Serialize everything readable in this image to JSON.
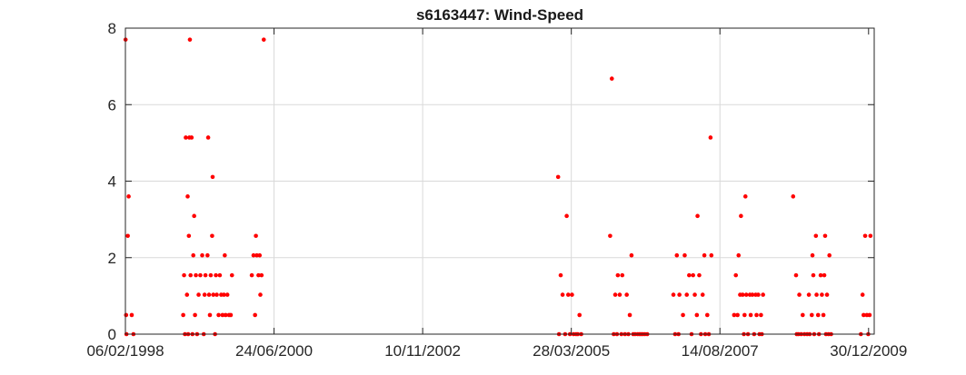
{
  "chart_data": {
    "type": "scatter",
    "title": "s6163447: Wind-Speed",
    "xlabel": "",
    "ylabel": "",
    "x_axis_type": "date",
    "xlim": [
      "1998-02-06",
      "2010-02-01"
    ],
    "ylim": [
      0,
      8
    ],
    "x_tick_values": [
      "1998-02-06",
      "2000-06-24",
      "2002-11-10",
      "2005-03-28",
      "2007-08-14",
      "2009-12-30"
    ],
    "x_tick_labels": [
      "06/02/1998",
      "24/06/2000",
      "10/11/2002",
      "28/03/2005",
      "14/08/2007",
      "30/12/2009"
    ],
    "y_ticks": [
      0,
      2,
      4,
      6,
      8
    ],
    "y_tick_labels": [
      "0",
      "2",
      "4",
      "6",
      "8"
    ],
    "grid": true,
    "marker_color": "#ff0000",
    "series": [
      {
        "points": [
          [
            "1998-02-07",
            7.7
          ],
          [
            "1998-02-10",
            0.5
          ],
          [
            "1998-02-12",
            0
          ],
          [
            "1998-02-20",
            2.57
          ],
          [
            "1998-02-25",
            3.6
          ],
          [
            "1998-03-15",
            0.5
          ],
          [
            "1998-03-25",
            0
          ],
          [
            "1999-01-10",
            0.5
          ],
          [
            "1999-01-15",
            1.54
          ],
          [
            "1999-01-20",
            0
          ],
          [
            "1999-01-25",
            5.14
          ],
          [
            "1999-02-01",
            1.03
          ],
          [
            "1999-02-05",
            3.6
          ],
          [
            "1999-02-08",
            0
          ],
          [
            "1999-02-12",
            2.57
          ],
          [
            "1999-02-15",
            5.14
          ],
          [
            "1999-02-18",
            7.7
          ],
          [
            "1999-02-22",
            1.54
          ],
          [
            "1999-02-28",
            5.14
          ],
          [
            "1999-03-05",
            0
          ],
          [
            "1999-03-10",
            2.06
          ],
          [
            "1999-03-15",
            3.09
          ],
          [
            "1999-03-20",
            0.5
          ],
          [
            "1999-03-25",
            1.54
          ],
          [
            "1999-04-01",
            0
          ],
          [
            "1999-04-10",
            1.03
          ],
          [
            "1999-04-20",
            1.54
          ],
          [
            "1999-05-01",
            2.06
          ],
          [
            "1999-05-10",
            0
          ],
          [
            "1999-05-15",
            1.03
          ],
          [
            "1999-05-20",
            1.54
          ],
          [
            "1999-06-01",
            2.06
          ],
          [
            "1999-06-05",
            5.14
          ],
          [
            "1999-06-10",
            1.03
          ],
          [
            "1999-06-15",
            0.5
          ],
          [
            "1999-06-20",
            1.54
          ],
          [
            "1999-06-28",
            2.57
          ],
          [
            "1999-07-01",
            4.11
          ],
          [
            "1999-07-05",
            1.03
          ],
          [
            "1999-07-15",
            0
          ],
          [
            "1999-07-20",
            1.54
          ],
          [
            "1999-07-25",
            1.03
          ],
          [
            "1999-08-05",
            0.5
          ],
          [
            "1999-08-12",
            1.54
          ],
          [
            "1999-08-20",
            1.03
          ],
          [
            "1999-08-28",
            0.5
          ],
          [
            "1999-09-05",
            1.03
          ],
          [
            "1999-09-10",
            2.06
          ],
          [
            "1999-09-15",
            0.5
          ],
          [
            "1999-09-25",
            1.03
          ],
          [
            "1999-10-05",
            0.5
          ],
          [
            "1999-10-15",
            0.5
          ],
          [
            "1999-10-22",
            1.54
          ],
          [
            "2000-02-15",
            1.54
          ],
          [
            "2000-02-25",
            2.06
          ],
          [
            "2000-03-05",
            0.5
          ],
          [
            "2000-03-10",
            2.57
          ],
          [
            "2000-03-15",
            2.06
          ],
          [
            "2000-03-25",
            1.54
          ],
          [
            "2000-04-01",
            2.06
          ],
          [
            "2000-04-05",
            1.03
          ],
          [
            "2000-04-12",
            1.54
          ],
          [
            "2000-04-25",
            7.7
          ],
          [
            "2005-01-10",
            4.11
          ],
          [
            "2005-01-15",
            0
          ],
          [
            "2005-01-25",
            1.54
          ],
          [
            "2005-02-05",
            1.03
          ],
          [
            "2005-02-20",
            0
          ],
          [
            "2005-03-01",
            3.09
          ],
          [
            "2005-03-10",
            1.03
          ],
          [
            "2005-03-20",
            0
          ],
          [
            "2005-04-01",
            1.03
          ],
          [
            "2005-04-10",
            0
          ],
          [
            "2005-04-25",
            0
          ],
          [
            "2005-05-05",
            0
          ],
          [
            "2005-05-15",
            0.5
          ],
          [
            "2005-05-25",
            0
          ],
          [
            "2005-11-10",
            2.57
          ],
          [
            "2005-11-20",
            6.68
          ],
          [
            "2005-12-01",
            0
          ],
          [
            "2005-12-10",
            1.03
          ],
          [
            "2005-12-20",
            0
          ],
          [
            "2005-12-25",
            1.54
          ],
          [
            "2006-01-05",
            1.03
          ],
          [
            "2006-01-15",
            0
          ],
          [
            "2006-01-20",
            1.54
          ],
          [
            "2006-02-05",
            0
          ],
          [
            "2006-02-15",
            1.03
          ],
          [
            "2006-02-25",
            0
          ],
          [
            "2006-03-05",
            0.5
          ],
          [
            "2006-03-15",
            2.06
          ],
          [
            "2006-03-25",
            0
          ],
          [
            "2006-04-05",
            0
          ],
          [
            "2006-04-20",
            0
          ],
          [
            "2006-05-01",
            0
          ],
          [
            "2006-05-10",
            0
          ],
          [
            "2006-05-20",
            0
          ],
          [
            "2006-06-01",
            0
          ],
          [
            "2006-06-15",
            0
          ],
          [
            "2006-11-15",
            1.03
          ],
          [
            "2006-11-25",
            0
          ],
          [
            "2006-12-05",
            2.06
          ],
          [
            "2006-12-15",
            0
          ],
          [
            "2006-12-20",
            1.03
          ],
          [
            "2007-01-10",
            0.5
          ],
          [
            "2007-01-20",
            2.06
          ],
          [
            "2007-02-01",
            1.03
          ],
          [
            "2007-02-15",
            1.54
          ],
          [
            "2007-03-01",
            0
          ],
          [
            "2007-03-10",
            1.54
          ],
          [
            "2007-03-20",
            1.03
          ],
          [
            "2007-04-01",
            0.5
          ],
          [
            "2007-04-05",
            3.09
          ],
          [
            "2007-04-15",
            1.54
          ],
          [
            "2007-04-25",
            0
          ],
          [
            "2007-05-05",
            1.03
          ],
          [
            "2007-05-15",
            2.06
          ],
          [
            "2007-05-20",
            0
          ],
          [
            "2007-06-01",
            0.5
          ],
          [
            "2007-06-10",
            0
          ],
          [
            "2007-06-20",
            5.14
          ],
          [
            "2007-06-25",
            2.06
          ],
          [
            "2007-11-05",
            0.5
          ],
          [
            "2007-11-15",
            1.54
          ],
          [
            "2007-11-25",
            0.5
          ],
          [
            "2007-12-01",
            2.06
          ],
          [
            "2007-12-10",
            1.03
          ],
          [
            "2007-12-15",
            3.09
          ],
          [
            "2007-12-25",
            1.03
          ],
          [
            "2008-01-01",
            0
          ],
          [
            "2008-01-05",
            0.5
          ],
          [
            "2008-01-10",
            3.6
          ],
          [
            "2008-01-15",
            1.03
          ],
          [
            "2008-01-25",
            0
          ],
          [
            "2008-02-05",
            1.03
          ],
          [
            "2008-02-10",
            0.5
          ],
          [
            "2008-02-20",
            1.03
          ],
          [
            "2008-03-01",
            0
          ],
          [
            "2008-03-10",
            1.03
          ],
          [
            "2008-03-15",
            0.5
          ],
          [
            "2008-03-25",
            1.03
          ],
          [
            "2008-04-01",
            0
          ],
          [
            "2008-04-10",
            0.5
          ],
          [
            "2008-04-15",
            0
          ],
          [
            "2008-04-22",
            1.03
          ],
          [
            "2008-10-15",
            3.6
          ],
          [
            "2008-11-01",
            1.54
          ],
          [
            "2008-11-05",
            0
          ],
          [
            "2008-11-15",
            0
          ],
          [
            "2008-11-20",
            1.03
          ],
          [
            "2008-12-01",
            0
          ],
          [
            "2008-12-10",
            0.5
          ],
          [
            "2008-12-20",
            0
          ],
          [
            "2009-01-05",
            0
          ],
          [
            "2009-01-15",
            1.03
          ],
          [
            "2009-01-20",
            0
          ],
          [
            "2009-02-01",
            0.5
          ],
          [
            "2009-02-05",
            2.06
          ],
          [
            "2009-02-10",
            1.54
          ],
          [
            "2009-02-15",
            0
          ],
          [
            "2009-02-25",
            2.57
          ],
          [
            "2009-03-01",
            1.03
          ],
          [
            "2009-03-10",
            0.5
          ],
          [
            "2009-03-15",
            0
          ],
          [
            "2009-03-25",
            1.54
          ],
          [
            "2009-04-01",
            1.03
          ],
          [
            "2009-04-10",
            0.5
          ],
          [
            "2009-04-15",
            1.54
          ],
          [
            "2009-04-20",
            2.57
          ],
          [
            "2009-04-25",
            0
          ],
          [
            "2009-05-01",
            1.03
          ],
          [
            "2009-05-10",
            0
          ],
          [
            "2009-05-15",
            2.06
          ],
          [
            "2009-05-25",
            0
          ],
          [
            "2009-11-15",
            0
          ],
          [
            "2009-11-25",
            1.03
          ],
          [
            "2009-12-01",
            0.5
          ],
          [
            "2009-12-10",
            2.57
          ],
          [
            "2009-12-20",
            0.5
          ],
          [
            "2009-12-28",
            0
          ],
          [
            "2010-01-05",
            0.5
          ],
          [
            "2010-01-10",
            2.57
          ]
        ]
      }
    ]
  }
}
